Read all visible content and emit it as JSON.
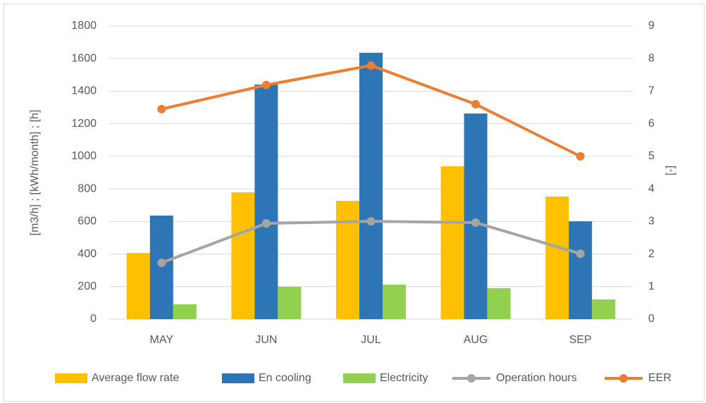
{
  "chart_data": {
    "type": "bar",
    "categories": [
      "MAY",
      "JUN",
      "JUL",
      "AUG",
      "SEP"
    ],
    "ylabel": "[m3/h] ; [kWh/month] ; [h]",
    "y2label": "[-]",
    "ylim": [
      0,
      1800
    ],
    "yticks": [
      0,
      200,
      400,
      600,
      800,
      1000,
      1200,
      1400,
      1600,
      1800
    ],
    "y2lim": [
      0,
      9
    ],
    "y2ticks": [
      0,
      1,
      2,
      3,
      4,
      5,
      6,
      7,
      8,
      9
    ],
    "grid": true,
    "legend": "bottom",
    "series": [
      {
        "name": "Average flow rate",
        "color": "#ffc000",
        "kind": "bar",
        "values": [
          407,
          779,
          727,
          939,
          753
        ]
      },
      {
        "name": "En cooling",
        "color": "#2e75b6",
        "kind": "bar",
        "values": [
          636,
          1441,
          1636,
          1263,
          601
        ]
      },
      {
        "name": "Electricity",
        "color": "#92d050",
        "kind": "bar",
        "values": [
          91,
          199,
          212,
          190,
          121
        ]
      },
      {
        "name": "Operation hours",
        "color": "#a5a5a5",
        "kind": "line",
        "values": [
          346,
          588,
          601,
          593,
          402
        ]
      },
      {
        "name": "EER",
        "color": "#ed7d31",
        "kind": "line",
        "axis": "y2",
        "values": [
          6.45,
          7.19,
          7.79,
          6.6,
          5.0
        ]
      }
    ]
  }
}
